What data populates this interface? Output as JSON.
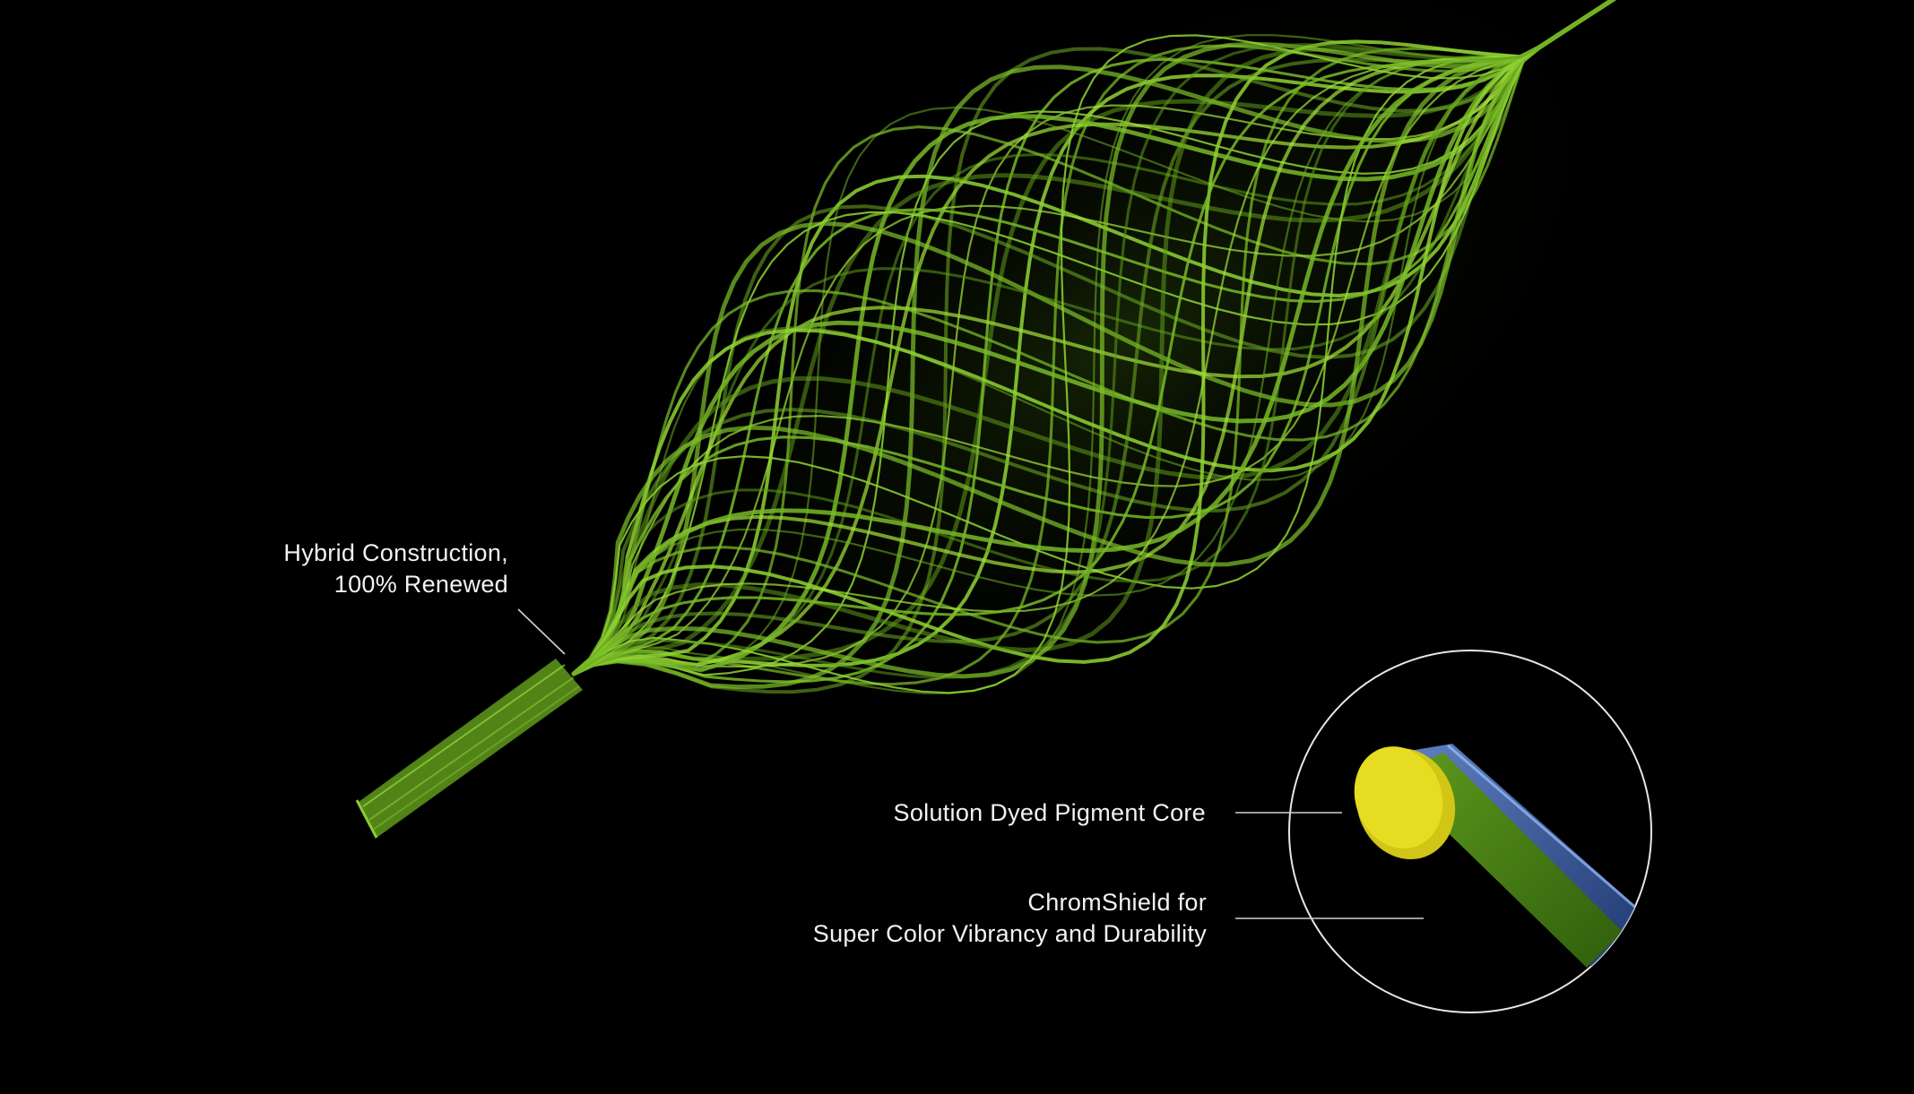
{
  "labels": {
    "hybrid": {
      "line1": "Hybrid Construction,",
      "line2": "100% Renewed"
    },
    "core": {
      "line1": "Solution Dyed Pigment Core"
    },
    "shield": {
      "line1": "ChromShield for",
      "line2": "Super Color Vibrancy and Durability"
    }
  },
  "colors": {
    "background": "#000000",
    "fiber_green": "#7fc22a",
    "fiber_highlight": "#b8f03c",
    "core_yellow": "#e4d81e",
    "shield_blue": "#3a5fa8",
    "text": "#f2f2f2",
    "callout_line": "#d0d0d0"
  }
}
